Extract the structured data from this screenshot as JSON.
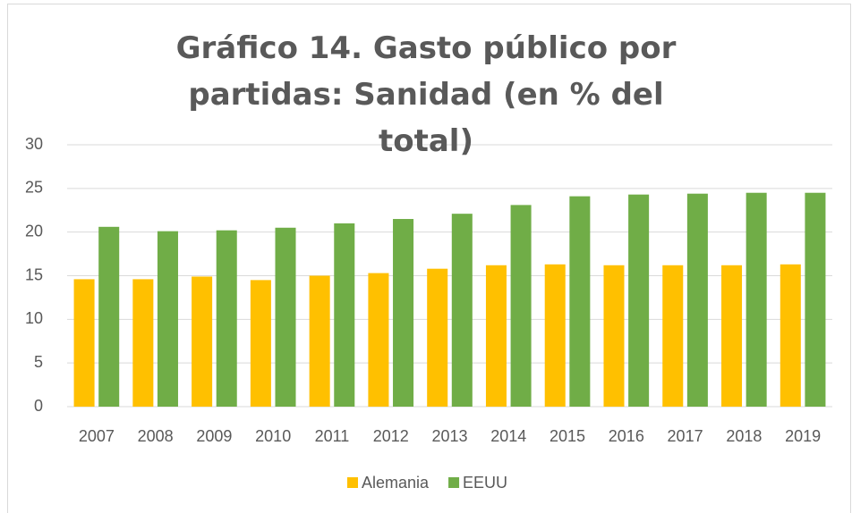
{
  "chart_data": {
    "type": "bar",
    "title": "Gráfico 14. Gasto público por partidas: Sanidad (en % del total)",
    "categories": [
      "2007",
      "2008",
      "2009",
      "2010",
      "2011",
      "2012",
      "2013",
      "2014",
      "2015",
      "2016",
      "2017",
      "2018",
      "2019"
    ],
    "series": [
      {
        "name": "Alemania",
        "color": "#ffc000",
        "values": [
          14.6,
          14.6,
          14.9,
          14.5,
          15.0,
          15.3,
          15.8,
          16.2,
          16.3,
          16.2,
          16.2,
          16.2,
          16.3
        ]
      },
      {
        "name": "EEUU",
        "color": "#70ad47",
        "values": [
          20.6,
          20.1,
          20.2,
          20.5,
          21.0,
          21.5,
          22.1,
          23.1,
          24.1,
          24.3,
          24.4,
          24.5,
          24.5
        ]
      }
    ],
    "ylim": [
      0,
      30
    ],
    "yticks": [
      0,
      5,
      10,
      15,
      20,
      25,
      30
    ],
    "grid": true,
    "legend": "bottom"
  }
}
